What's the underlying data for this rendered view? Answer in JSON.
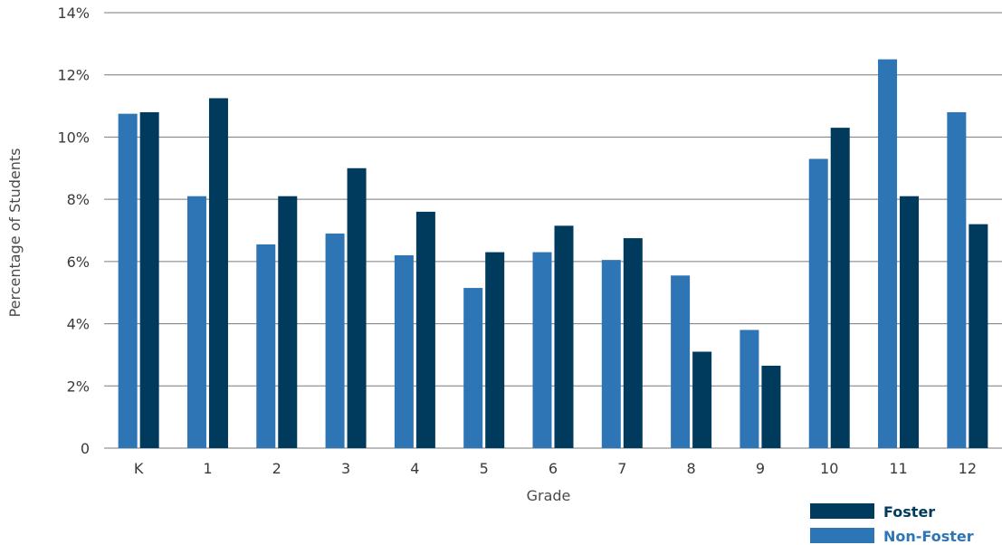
{
  "chart_data": {
    "type": "bar",
    "categories": [
      "K",
      "1",
      "2",
      "3",
      "4",
      "5",
      "6",
      "7",
      "8",
      "9",
      "10",
      "11",
      "12"
    ],
    "series": [
      {
        "name": "Non-Foster",
        "color": "#2e75b6",
        "values": [
          10.75,
          8.1,
          6.55,
          6.9,
          6.2,
          5.15,
          6.3,
          6.05,
          5.55,
          3.8,
          9.3,
          12.5,
          10.8
        ]
      },
      {
        "name": "Foster",
        "color": "#003a5d",
        "values": [
          10.8,
          11.25,
          8.1,
          9.0,
          7.6,
          6.3,
          7.15,
          6.75,
          3.1,
          2.65,
          10.3,
          8.1,
          7.2
        ]
      }
    ],
    "yticks": [
      "0",
      "2%",
      "4%",
      "6%",
      "8%",
      "10%",
      "12%",
      "14%"
    ],
    "ylim": [
      0,
      14
    ],
    "xlabel": "Grade",
    "ylabel": "Percentage of Students",
    "grid": true,
    "legend": {
      "position": "bottom-right",
      "entries": [
        {
          "label": "Foster",
          "color": "#003a5d"
        },
        {
          "label": "Non-Foster",
          "color": "#2e75b6"
        }
      ]
    }
  }
}
